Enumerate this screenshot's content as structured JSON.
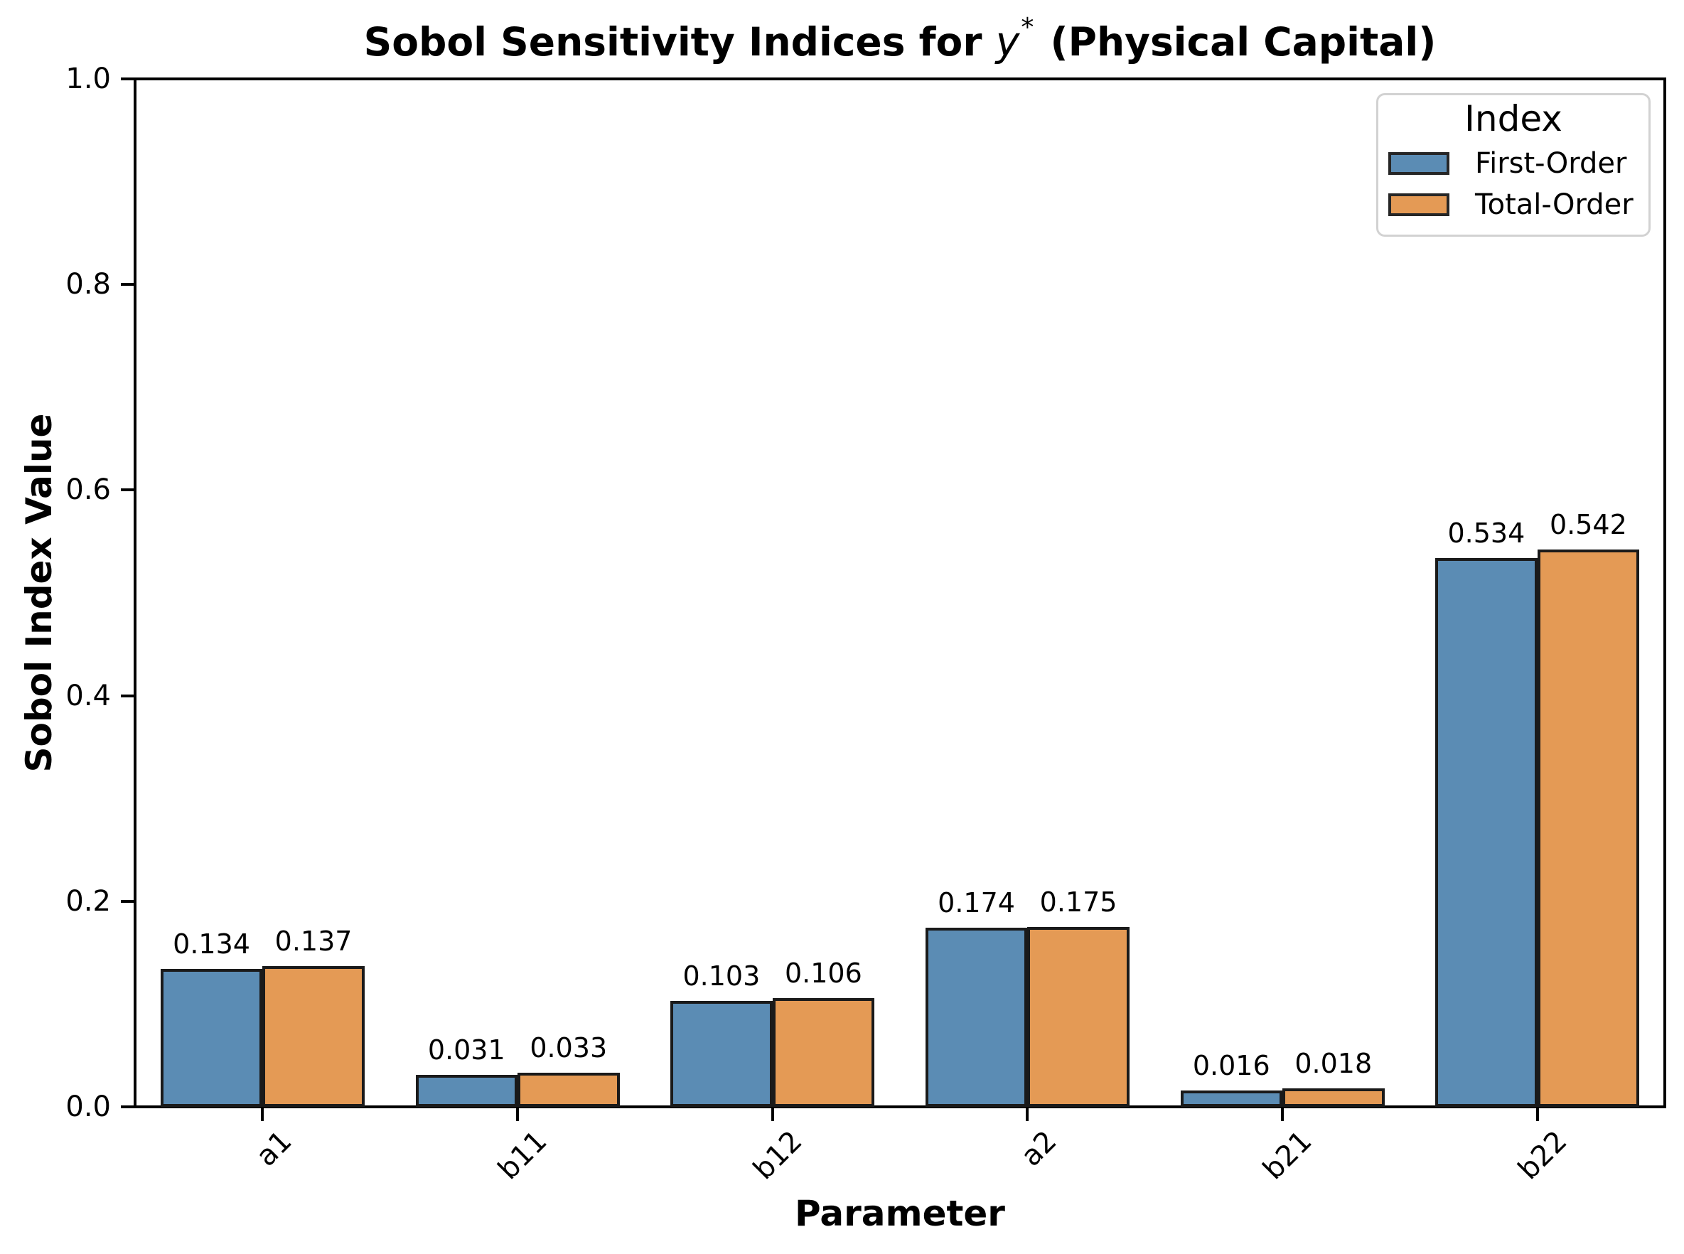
{
  "figure": {
    "background": "#ffffff"
  },
  "chart_data": {
    "type": "bar",
    "title": "Sobol Sensitivity Indices for y* (Physical Capital)",
    "title_parts": {
      "prefix": "Sobol Sensitivity Indices for ",
      "math_var": "y",
      "math_sup": "*",
      "suffix": " (Physical Capital)"
    },
    "xlabel": "Parameter",
    "ylabel": "Sobol Index Value",
    "categories": [
      "a1",
      "b11",
      "b12",
      "a2",
      "b21",
      "b22"
    ],
    "series": [
      {
        "name": "First-Order",
        "color": "#5B8CB4",
        "values": [
          0.134,
          0.031,
          0.103,
          0.174,
          0.016,
          0.534
        ],
        "value_labels": [
          "0.134",
          "0.031",
          "0.103",
          "0.174",
          "0.016",
          "0.534"
        ]
      },
      {
        "name": "Total-Order",
        "color": "#E49A55",
        "values": [
          0.137,
          0.033,
          0.106,
          0.175,
          0.018,
          0.542
        ],
        "value_labels": [
          "0.137",
          "0.033",
          "0.106",
          "0.175",
          "0.018",
          "0.542"
        ]
      }
    ],
    "ylim": [
      0,
      1
    ],
    "yticks": {
      "values": [
        0.0,
        0.2,
        0.4,
        0.6,
        0.8,
        1.0
      ],
      "labels": [
        "0.0",
        "0.2",
        "0.4",
        "0.6",
        "0.8",
        "1.0"
      ]
    },
    "legend": {
      "title": "Index",
      "entries": [
        "First-Order",
        "Total-Order"
      ],
      "position": "upper right"
    },
    "styles": {
      "bar_edge_color": "#1A1A1A",
      "axis_color": "#000000",
      "legend_border_color": "#D2D2D2",
      "text_color": "#000000"
    },
    "grid": false
  }
}
